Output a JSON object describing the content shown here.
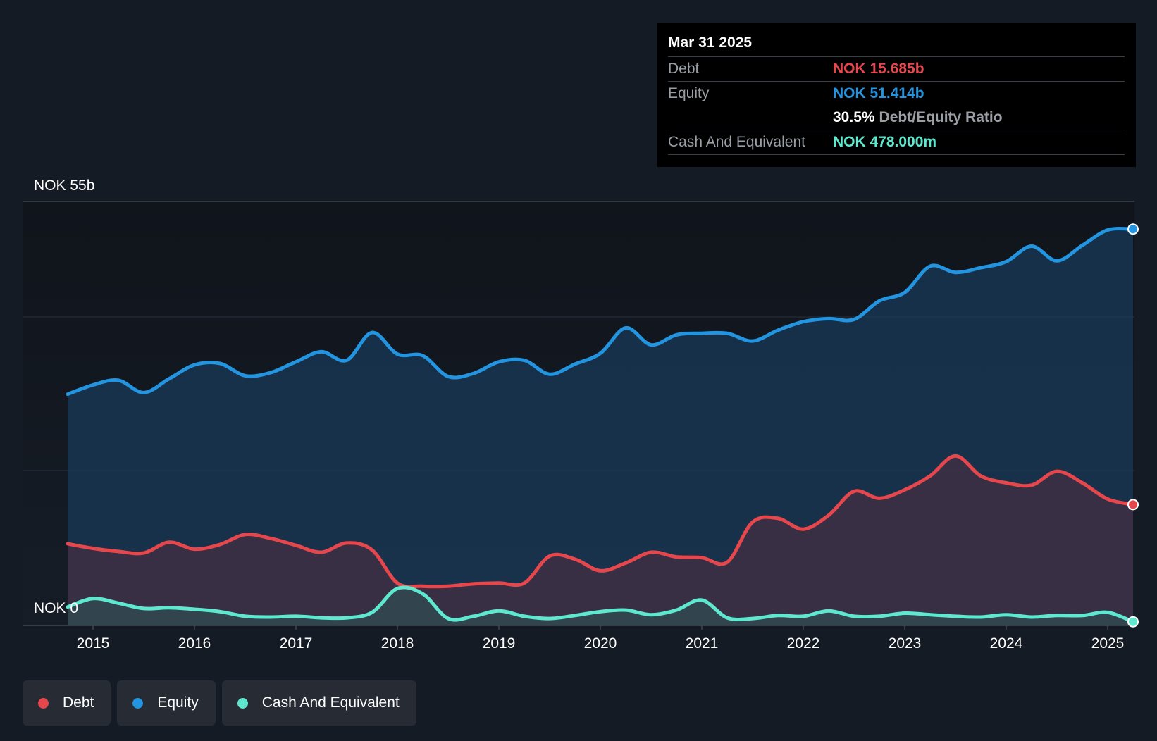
{
  "chart_data": {
    "type": "area",
    "ylim": [
      0,
      55
    ],
    "y_top_label": "NOK 55b",
    "y_bottom_label": "NOK 0",
    "x_ticks": [
      "2015",
      "2016",
      "2017",
      "2018",
      "2019",
      "2020",
      "2021",
      "2022",
      "2023",
      "2024",
      "2025"
    ],
    "colors": {
      "debt": "#e5474c",
      "equity": "#2394e0",
      "cash": "#5ee8cf"
    },
    "series": [
      {
        "name": "Equity",
        "key": "equity",
        "points": [
          [
            2014.75,
            30.0
          ],
          [
            2015.0,
            31.2
          ],
          [
            2015.25,
            31.8
          ],
          [
            2015.5,
            30.2
          ],
          [
            2015.75,
            32.0
          ],
          [
            2016.0,
            33.8
          ],
          [
            2016.25,
            34.0
          ],
          [
            2016.5,
            32.4
          ],
          [
            2016.75,
            32.8
          ],
          [
            2017.0,
            34.2
          ],
          [
            2017.25,
            35.5
          ],
          [
            2017.5,
            34.4
          ],
          [
            2017.75,
            38.0
          ],
          [
            2018.0,
            35.2
          ],
          [
            2018.25,
            35.0
          ],
          [
            2018.5,
            32.3
          ],
          [
            2018.75,
            32.7
          ],
          [
            2019.0,
            34.2
          ],
          [
            2019.25,
            34.4
          ],
          [
            2019.5,
            32.6
          ],
          [
            2019.75,
            33.9
          ],
          [
            2020.0,
            35.3
          ],
          [
            2020.25,
            38.6
          ],
          [
            2020.5,
            36.4
          ],
          [
            2020.75,
            37.7
          ],
          [
            2021.0,
            37.9
          ],
          [
            2021.25,
            37.9
          ],
          [
            2021.5,
            36.9
          ],
          [
            2021.75,
            38.3
          ],
          [
            2022.0,
            39.4
          ],
          [
            2022.25,
            39.8
          ],
          [
            2022.5,
            39.7
          ],
          [
            2022.75,
            42.1
          ],
          [
            2023.0,
            43.2
          ],
          [
            2023.25,
            46.6
          ],
          [
            2023.5,
            45.8
          ],
          [
            2023.75,
            46.4
          ],
          [
            2024.0,
            47.2
          ],
          [
            2024.25,
            49.2
          ],
          [
            2024.5,
            47.3
          ],
          [
            2024.75,
            49.3
          ],
          [
            2025.0,
            51.3
          ],
          [
            2025.25,
            51.414
          ]
        ]
      },
      {
        "name": "Debt",
        "key": "debt",
        "points": [
          [
            2014.75,
            10.6
          ],
          [
            2015.0,
            10.0
          ],
          [
            2015.25,
            9.6
          ],
          [
            2015.5,
            9.4
          ],
          [
            2015.75,
            10.8
          ],
          [
            2016.0,
            9.9
          ],
          [
            2016.25,
            10.5
          ],
          [
            2016.5,
            11.8
          ],
          [
            2016.75,
            11.3
          ],
          [
            2017.0,
            10.4
          ],
          [
            2017.25,
            9.5
          ],
          [
            2017.5,
            10.7
          ],
          [
            2017.75,
            9.8
          ],
          [
            2018.0,
            5.5
          ],
          [
            2018.25,
            5.1
          ],
          [
            2018.5,
            5.1
          ],
          [
            2018.75,
            5.4
          ],
          [
            2019.0,
            5.5
          ],
          [
            2019.25,
            5.5
          ],
          [
            2019.5,
            9.0
          ],
          [
            2019.75,
            8.6
          ],
          [
            2020.0,
            7.1
          ],
          [
            2020.25,
            8.1
          ],
          [
            2020.5,
            9.5
          ],
          [
            2020.75,
            8.9
          ],
          [
            2021.0,
            8.8
          ],
          [
            2021.25,
            8.2
          ],
          [
            2021.5,
            13.4
          ],
          [
            2021.75,
            13.9
          ],
          [
            2022.0,
            12.5
          ],
          [
            2022.25,
            14.3
          ],
          [
            2022.5,
            17.4
          ],
          [
            2022.75,
            16.5
          ],
          [
            2023.0,
            17.6
          ],
          [
            2023.25,
            19.4
          ],
          [
            2023.5,
            22.0
          ],
          [
            2023.75,
            19.4
          ],
          [
            2024.0,
            18.5
          ],
          [
            2024.25,
            18.2
          ],
          [
            2024.5,
            20.0
          ],
          [
            2024.75,
            18.5
          ],
          [
            2025.0,
            16.4
          ],
          [
            2025.25,
            15.685
          ]
        ]
      },
      {
        "name": "Cash And Equivalent",
        "key": "cash",
        "points": [
          [
            2014.75,
            2.4
          ],
          [
            2015.0,
            3.5
          ],
          [
            2015.25,
            2.9
          ],
          [
            2015.5,
            2.2
          ],
          [
            2015.75,
            2.3
          ],
          [
            2016.0,
            2.1
          ],
          [
            2016.25,
            1.8
          ],
          [
            2016.5,
            1.2
          ],
          [
            2016.75,
            1.1
          ],
          [
            2017.0,
            1.2
          ],
          [
            2017.25,
            1.0
          ],
          [
            2017.5,
            1.0
          ],
          [
            2017.75,
            1.7
          ],
          [
            2018.0,
            4.8
          ],
          [
            2018.25,
            4.1
          ],
          [
            2018.5,
            0.9
          ],
          [
            2018.75,
            1.2
          ],
          [
            2019.0,
            1.9
          ],
          [
            2019.25,
            1.2
          ],
          [
            2019.5,
            0.9
          ],
          [
            2019.75,
            1.3
          ],
          [
            2020.0,
            1.8
          ],
          [
            2020.25,
            2.0
          ],
          [
            2020.5,
            1.4
          ],
          [
            2020.75,
            2.0
          ],
          [
            2021.0,
            3.3
          ],
          [
            2021.25,
            1.0
          ],
          [
            2021.5,
            0.9
          ],
          [
            2021.75,
            1.3
          ],
          [
            2022.0,
            1.2
          ],
          [
            2022.25,
            1.9
          ],
          [
            2022.5,
            1.2
          ],
          [
            2022.75,
            1.2
          ],
          [
            2023.0,
            1.6
          ],
          [
            2023.25,
            1.4
          ],
          [
            2023.5,
            1.2
          ],
          [
            2023.75,
            1.1
          ],
          [
            2024.0,
            1.4
          ],
          [
            2024.25,
            1.1
          ],
          [
            2024.5,
            1.3
          ],
          [
            2024.75,
            1.3
          ],
          [
            2025.0,
            1.7
          ],
          [
            2025.25,
            0.478
          ]
        ]
      }
    ]
  },
  "tooltip": {
    "date": "Mar 31 2025",
    "debt_label": "Debt",
    "debt_value": "NOK 15.685b",
    "equity_label": "Equity",
    "equity_value": "NOK 51.414b",
    "ratio_value": "30.5%",
    "ratio_label": "Debt/Equity Ratio",
    "cash_label": "Cash And Equivalent",
    "cash_value": "NOK 478.000m"
  },
  "legend": {
    "debt": "Debt",
    "equity": "Equity",
    "cash": "Cash And Equivalent"
  }
}
